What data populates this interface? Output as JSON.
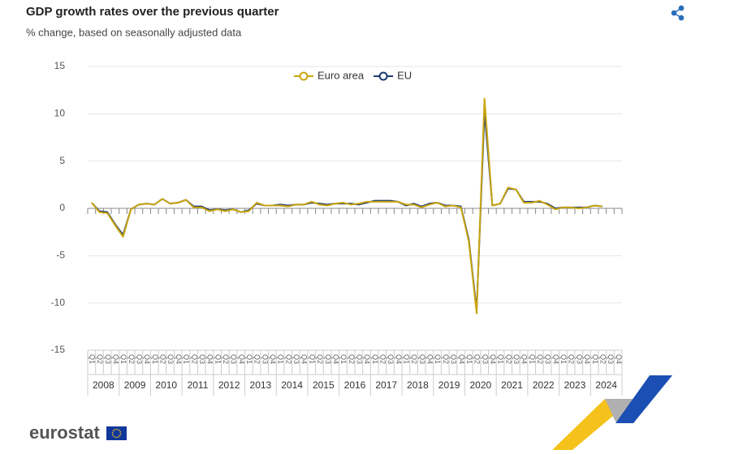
{
  "chart_data": {
    "type": "line",
    "title": "GDP growth rates over the previous quarter",
    "subtitle": "% change, based on seasonally adjusted data",
    "logo_text": "eurostat",
    "categories": [
      "Q1",
      "Q2",
      "Q3",
      "Q4",
      "Q1",
      "Q2",
      "Q3",
      "Q4",
      "Q1",
      "Q2",
      "Q3",
      "Q4",
      "Q1",
      "Q2",
      "Q3",
      "Q4",
      "Q1",
      "Q2",
      "Q3",
      "Q4",
      "Q1",
      "Q2",
      "Q3",
      "Q4",
      "Q1",
      "Q2",
      "Q3",
      "Q4",
      "Q1",
      "Q2",
      "Q3",
      "Q4",
      "Q1",
      "Q2",
      "Q3",
      "Q4",
      "Q1",
      "Q2",
      "Q3",
      "Q4",
      "Q1",
      "Q2",
      "Q3",
      "Q4",
      "Q1",
      "Q2",
      "Q3",
      "Q4",
      "Q1",
      "Q2",
      "Q3",
      "Q4",
      "Q1",
      "Q2",
      "Q3",
      "Q4",
      "Q1",
      "Q2",
      "Q3",
      "Q4",
      "Q1",
      "Q2",
      "Q3",
      "Q4",
      "Q1",
      "Q2",
      "Q3",
      "Q4"
    ],
    "year_groups": [
      "2008",
      "2009",
      "2010",
      "2011",
      "2012",
      "2013",
      "2014",
      "2015",
      "2016",
      "2017",
      "2018",
      "2019",
      "2020",
      "2021",
      "2022",
      "2023",
      "2024"
    ],
    "series": [
      {
        "name": "EU",
        "color": "#1d3a6e",
        "values": [
          0.6,
          -0.3,
          -0.4,
          -1.7,
          -2.8,
          -0.1,
          0.4,
          0.5,
          0.4,
          1.0,
          0.5,
          0.6,
          0.9,
          0.2,
          0.2,
          -0.2,
          -0.1,
          -0.2,
          -0.1,
          -0.4,
          -0.2,
          0.5,
          0.3,
          0.3,
          0.4,
          0.3,
          0.4,
          0.4,
          0.6,
          0.5,
          0.4,
          0.5,
          0.5,
          0.5,
          0.4,
          0.6,
          0.8,
          0.8,
          0.8,
          0.7,
          0.3,
          0.5,
          0.2,
          0.5,
          0.6,
          0.3,
          0.3,
          0.2,
          -3.3,
          -10.8,
          10.3,
          0.3,
          0.5,
          2.1,
          2.0,
          0.7,
          0.7,
          0.7,
          0.5,
          0.0,
          0.1,
          0.1,
          0.1,
          0.1,
          0.3,
          0.2,
          null,
          null
        ]
      },
      {
        "name": "Euro area",
        "color": "#c9a611",
        "values": [
          0.6,
          -0.4,
          -0.5,
          -1.8,
          -3.0,
          -0.1,
          0.4,
          0.5,
          0.4,
          1.0,
          0.5,
          0.6,
          0.9,
          0.1,
          0.1,
          -0.3,
          -0.1,
          -0.3,
          -0.1,
          -0.4,
          -0.3,
          0.6,
          0.3,
          0.3,
          0.3,
          0.2,
          0.4,
          0.4,
          0.7,
          0.4,
          0.3,
          0.5,
          0.6,
          0.4,
          0.5,
          0.7,
          0.7,
          0.7,
          0.7,
          0.7,
          0.4,
          0.4,
          0.1,
          0.4,
          0.6,
          0.2,
          0.3,
          0.1,
          -3.5,
          -11.1,
          11.6,
          0.3,
          0.5,
          2.2,
          2.0,
          0.6,
          0.6,
          0.8,
          0.4,
          -0.1,
          0.1,
          0.1,
          0.0,
          0.1,
          0.3,
          0.2,
          null,
          null
        ]
      }
    ],
    "ylim": [
      -15,
      15
    ],
    "yticks": [
      15,
      10,
      5,
      0,
      -5,
      -10,
      -15
    ],
    "grid": true
  }
}
